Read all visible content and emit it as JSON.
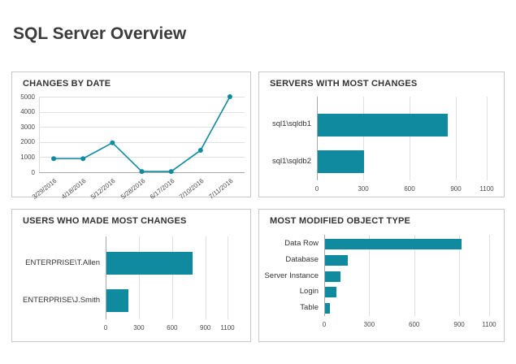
{
  "header": {
    "title": "SQL Server Overview"
  },
  "theme": {
    "accent": "#0f8a9e",
    "grid": "#e0e0e0",
    "panel_border": "#c8c8c8"
  },
  "chart_data": [
    {
      "id": "changes-by-date",
      "type": "line",
      "title": "CHANGES BY DATE",
      "x": [
        "3/29/2016",
        "4/18/2016",
        "5/12/2016",
        "5/28/2016",
        "6/17/2016",
        "7/10/2016",
        "7/11/2016"
      ],
      "values": [
        900,
        900,
        1950,
        50,
        50,
        1450,
        5000
      ],
      "ylim": [
        0,
        5000
      ],
      "yticks": [
        0,
        1000,
        2000,
        3000,
        4000,
        5000
      ],
      "grid": "horizontal",
      "color": "#0f8a9e"
    },
    {
      "id": "servers-with-most-changes",
      "type": "bar",
      "orientation": "horizontal",
      "title": "SERVERS WITH MOST CHANGES",
      "categories": [
        "sql1\\sqldb1",
        "sql1\\sqldb2"
      ],
      "values": [
        840,
        300
      ],
      "xlim": [
        0,
        1100
      ],
      "xticks": [
        0,
        300,
        600,
        900,
        1100
      ],
      "grid": "vertical",
      "color": "#0f8a9e"
    },
    {
      "id": "users-who-made-most-changes",
      "type": "bar",
      "orientation": "horizontal",
      "title": "USERS WHO MADE MOST CHANGES",
      "categories": [
        "ENTERPRISE\\T.Allen",
        "ENTERPRISE\\J.Smith"
      ],
      "values": [
        780,
        200
      ],
      "xlim": [
        0,
        1100
      ],
      "xticks": [
        0,
        300,
        600,
        900,
        1100
      ],
      "grid": "vertical",
      "color": "#0f8a9e"
    },
    {
      "id": "most-modified-object-type",
      "type": "bar",
      "orientation": "horizontal",
      "title": "MOST MODIFIED OBJECT TYPE",
      "categories": [
        "Data Row",
        "Database",
        "Server Instance",
        "Login",
        "Table"
      ],
      "values": [
        910,
        150,
        105,
        75,
        35
      ],
      "xlim": [
        0,
        1100
      ],
      "xticks": [
        0,
        300,
        600,
        900,
        1100
      ],
      "grid": "vertical",
      "color": "#0f8a9e"
    }
  ]
}
